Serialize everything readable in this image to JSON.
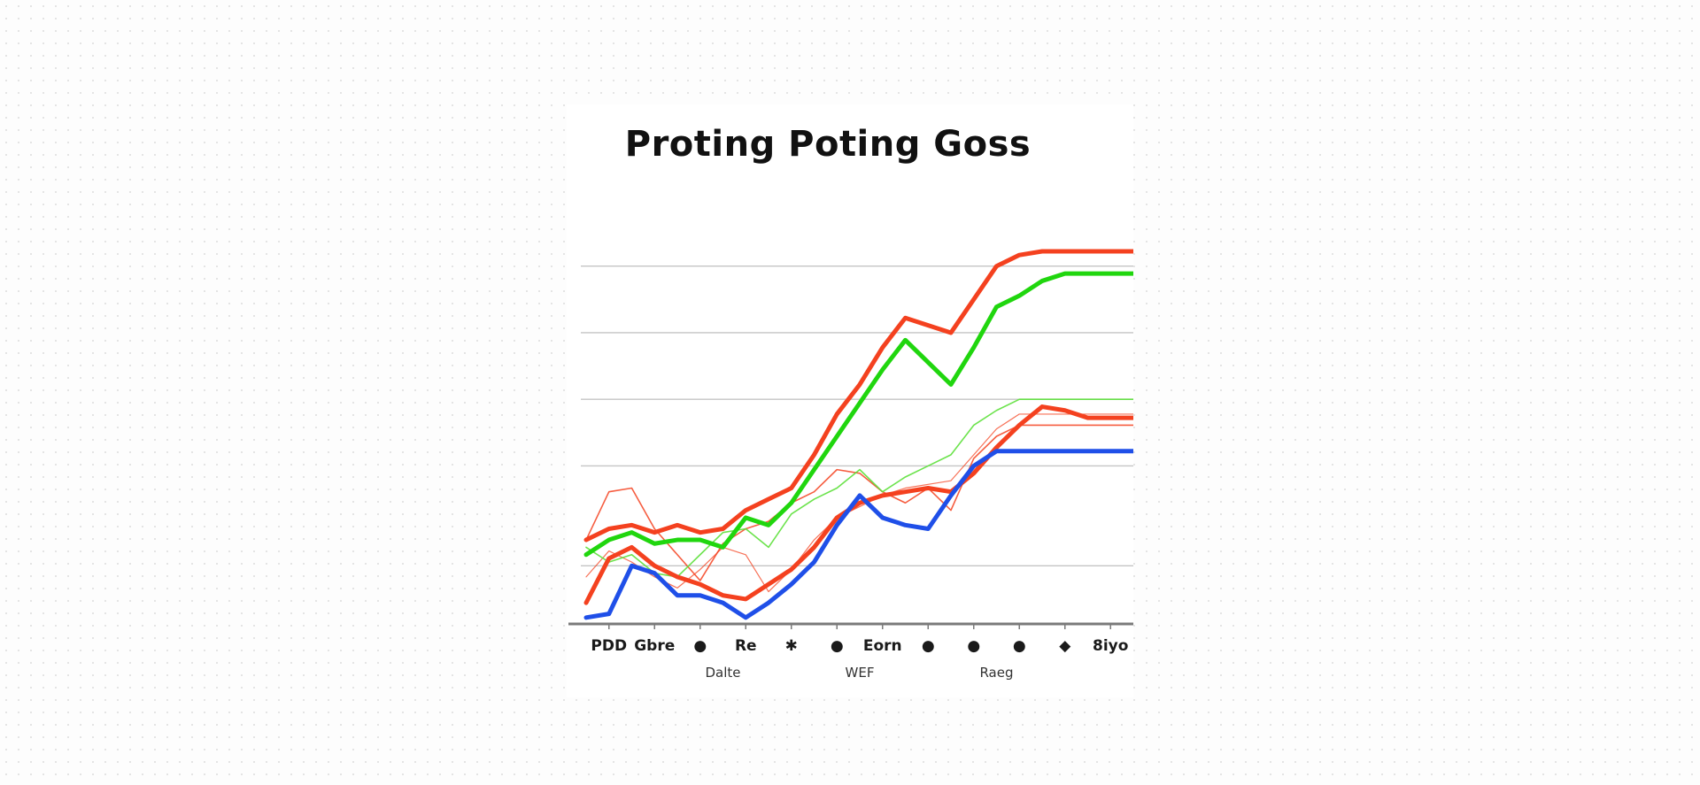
{
  "chart_data": {
    "type": "line",
    "title": "Proting Poting Goss",
    "xlabel": "",
    "ylabel": "",
    "ylim": [
      0,
      10
    ],
    "grid": true,
    "legend": "none",
    "x": [
      0,
      1,
      2,
      3,
      4,
      5,
      6,
      7,
      8,
      9,
      10,
      11,
      12,
      13,
      14,
      15,
      16,
      17,
      18,
      19,
      20,
      21,
      22,
      23,
      24
    ],
    "tick_labels": [
      "PDD",
      "Gbre",
      "●",
      "Re",
      "✱",
      "●",
      "Eorn",
      "●",
      "●",
      "●",
      "◆",
      "8iyo"
    ],
    "group_labels": [
      "Dalte",
      "WEF",
      "Raeg"
    ],
    "series": [
      {
        "color": "#f4411f",
        "width": 5,
        "opacity": 1,
        "values": [
          2.2,
          2.5,
          2.6,
          2.4,
          2.6,
          2.4,
          2.5,
          3.0,
          3.3,
          3.6,
          4.5,
          5.6,
          6.4,
          7.4,
          8.2,
          8.0,
          7.8,
          8.7,
          9.6,
          9.9,
          10.0,
          10.0,
          10.0,
          10.0,
          10.0
        ]
      },
      {
        "color": "#20d60e",
        "width": 5,
        "opacity": 1,
        "values": [
          1.8,
          2.2,
          2.4,
          2.1,
          2.2,
          2.2,
          2.0,
          2.8,
          2.6,
          3.2,
          4.1,
          5.0,
          5.9,
          6.8,
          7.6,
          7.0,
          6.4,
          7.4,
          8.5,
          8.8,
          9.2,
          9.4,
          9.4,
          9.4,
          9.4
        ]
      },
      {
        "color": "#f4411f",
        "width": 5,
        "opacity": 1,
        "values": [
          0.5,
          1.7,
          2.0,
          1.5,
          1.2,
          1.0,
          0.7,
          0.6,
          1.0,
          1.4,
          2.0,
          2.8,
          3.2,
          3.4,
          3.5,
          3.6,
          3.5,
          4.0,
          4.7,
          5.3,
          5.8,
          5.7,
          5.5,
          5.5,
          5.5
        ]
      },
      {
        "color": "#1f4fe8",
        "width": 5,
        "opacity": 1,
        "values": [
          0.1,
          0.2,
          1.5,
          1.3,
          0.7,
          0.7,
          0.5,
          0.1,
          0.5,
          1.0,
          1.6,
          2.6,
          3.4,
          2.8,
          2.6,
          2.5,
          3.4,
          4.2,
          4.6,
          4.6,
          4.6,
          4.6,
          4.6,
          4.6,
          4.6
        ]
      },
      {
        "color": "#f4411f",
        "width": 1.6,
        "opacity": 0.85,
        "values": [
          2.2,
          3.5,
          3.6,
          2.5,
          1.8,
          1.1,
          2.1,
          2.5,
          2.7,
          3.2,
          3.5,
          4.1,
          4.0,
          3.5,
          3.2,
          3.6,
          3.0,
          4.4,
          5.0,
          5.3,
          5.3,
          5.3,
          5.3,
          5.3,
          5.3
        ]
      },
      {
        "color": "#5ce03a",
        "width": 1.6,
        "opacity": 0.9,
        "values": [
          2.0,
          1.6,
          1.8,
          1.3,
          1.2,
          1.8,
          2.4,
          2.5,
          2.0,
          2.9,
          3.3,
          3.6,
          4.1,
          3.5,
          3.9,
          4.2,
          4.5,
          5.3,
          5.7,
          6.0,
          6.0,
          6.0,
          6.0,
          6.0,
          6.0
        ]
      },
      {
        "color": "#f4411f",
        "width": 1.2,
        "opacity": 0.75,
        "values": [
          1.2,
          1.9,
          1.6,
          1.2,
          0.9,
          1.4,
          2.0,
          1.8,
          0.8,
          1.4,
          2.2,
          2.8,
          3.1,
          3.4,
          3.6,
          3.7,
          3.8,
          4.5,
          5.2,
          5.6,
          5.6,
          5.6,
          5.6,
          5.6,
          5.6
        ]
      }
    ]
  }
}
